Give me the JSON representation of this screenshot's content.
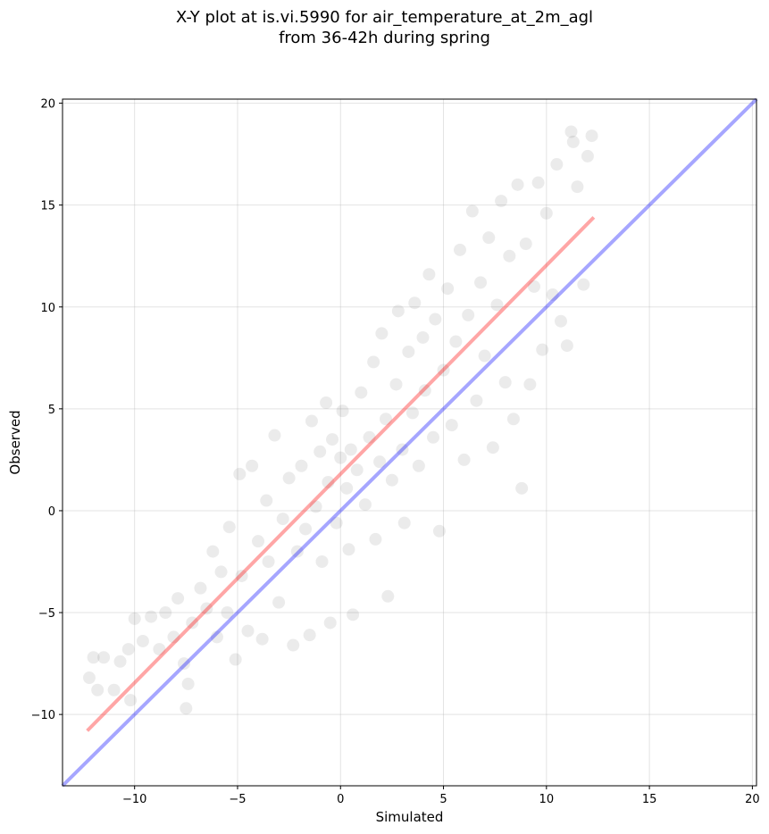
{
  "chart_data": {
    "type": "scatter",
    "title": "X-Y plot at is.vi.5990 for air_temperature_at_2m_agl",
    "subtitle": "from 36-42h during spring",
    "xlabel": "Simulated",
    "ylabel": "Observed",
    "xlim": [
      -13.5,
      20.2
    ],
    "ylim": [
      -13.5,
      20.2
    ],
    "xticks": [
      -10,
      -5,
      0,
      5,
      10,
      15,
      20
    ],
    "yticks": [
      -10,
      -5,
      0,
      5,
      10,
      15,
      20
    ],
    "xtick_labels": [
      "−10",
      "−5",
      "0",
      "5",
      "10",
      "15",
      "20"
    ],
    "ytick_labels": [
      "−10",
      "−5",
      "0",
      "5",
      "10",
      "15",
      "20"
    ],
    "grid": true,
    "point_color": "#000000",
    "point_opacity": 0.08,
    "fit_line": {
      "x": [
        -12.3,
        12.3
      ],
      "y": [
        -10.8,
        14.4
      ],
      "color": "#ff0000",
      "opacity": 0.35
    },
    "identity_line": {
      "x": [
        -13.5,
        20.2
      ],
      "y": [
        -13.5,
        20.2
      ],
      "color": "#0000ff",
      "opacity": 0.35
    },
    "points": [
      {
        "x": -12.2,
        "y": -8.2
      },
      {
        "x": -12.0,
        "y": -7.2
      },
      {
        "x": -11.8,
        "y": -8.8
      },
      {
        "x": -11.5,
        "y": -7.2
      },
      {
        "x": -11.0,
        "y": -8.8
      },
      {
        "x": -10.7,
        "y": -7.4
      },
      {
        "x": -10.3,
        "y": -6.8
      },
      {
        "x": -10.2,
        "y": -9.3
      },
      {
        "x": -10.0,
        "y": -5.3
      },
      {
        "x": -9.6,
        "y": -6.4
      },
      {
        "x": -9.2,
        "y": -5.2
      },
      {
        "x": -8.8,
        "y": -6.8
      },
      {
        "x": -8.5,
        "y": -5.0
      },
      {
        "x": -8.1,
        "y": -6.2
      },
      {
        "x": -7.9,
        "y": -4.3
      },
      {
        "x": -7.6,
        "y": -7.5
      },
      {
        "x": -7.5,
        "y": -9.7
      },
      {
        "x": -7.4,
        "y": -8.5
      },
      {
        "x": -7.2,
        "y": -5.5
      },
      {
        "x": -6.8,
        "y": -3.8
      },
      {
        "x": -6.5,
        "y": -4.8
      },
      {
        "x": -6.2,
        "y": -2.0
      },
      {
        "x": -6.0,
        "y": -6.2
      },
      {
        "x": -5.8,
        "y": -3.0
      },
      {
        "x": -5.5,
        "y": -5.0
      },
      {
        "x": -5.4,
        "y": -0.8
      },
      {
        "x": -5.1,
        "y": -7.3
      },
      {
        "x": -4.9,
        "y": 1.8
      },
      {
        "x": -4.8,
        "y": -3.2
      },
      {
        "x": -4.5,
        "y": -5.9
      },
      {
        "x": -4.3,
        "y": 2.2
      },
      {
        "x": -4.0,
        "y": -1.5
      },
      {
        "x": -3.8,
        "y": -6.3
      },
      {
        "x": -3.6,
        "y": 0.5
      },
      {
        "x": -3.5,
        "y": -2.5
      },
      {
        "x": -3.2,
        "y": 3.7
      },
      {
        "x": -3.0,
        "y": -4.5
      },
      {
        "x": -2.8,
        "y": -0.4
      },
      {
        "x": -2.5,
        "y": 1.6
      },
      {
        "x": -2.3,
        "y": -6.6
      },
      {
        "x": -2.1,
        "y": -2.0
      },
      {
        "x": -1.9,
        "y": 2.2
      },
      {
        "x": -1.7,
        "y": -0.9
      },
      {
        "x": -1.5,
        "y": -6.1
      },
      {
        "x": -1.4,
        "y": 4.4
      },
      {
        "x": -1.2,
        "y": 0.2
      },
      {
        "x": -1.0,
        "y": 2.9
      },
      {
        "x": -0.9,
        "y": -2.5
      },
      {
        "x": -0.7,
        "y": 5.3
      },
      {
        "x": -0.6,
        "y": 1.4
      },
      {
        "x": -0.5,
        "y": -5.5
      },
      {
        "x": -0.4,
        "y": 3.5
      },
      {
        "x": -0.2,
        "y": -0.6
      },
      {
        "x": 0.0,
        "y": 2.6
      },
      {
        "x": 0.1,
        "y": 4.9
      },
      {
        "x": 0.3,
        "y": 1.1
      },
      {
        "x": 0.4,
        "y": -1.9
      },
      {
        "x": 0.5,
        "y": 3.0
      },
      {
        "x": 0.6,
        "y": -5.1
      },
      {
        "x": 0.8,
        "y": 2.0
      },
      {
        "x": 1.0,
        "y": 5.8
      },
      {
        "x": 1.2,
        "y": 0.3
      },
      {
        "x": 1.4,
        "y": 3.6
      },
      {
        "x": 1.6,
        "y": 7.3
      },
      {
        "x": 1.7,
        "y": -1.4
      },
      {
        "x": 1.9,
        "y": 2.4
      },
      {
        "x": 2.0,
        "y": 8.7
      },
      {
        "x": 2.2,
        "y": 4.5
      },
      {
        "x": 2.3,
        "y": -4.2
      },
      {
        "x": 2.5,
        "y": 1.5
      },
      {
        "x": 2.7,
        "y": 6.2
      },
      {
        "x": 2.8,
        "y": 9.8
      },
      {
        "x": 3.0,
        "y": 3.0
      },
      {
        "x": 3.1,
        "y": -0.6
      },
      {
        "x": 3.3,
        "y": 7.8
      },
      {
        "x": 3.5,
        "y": 4.8
      },
      {
        "x": 3.6,
        "y": 10.2
      },
      {
        "x": 3.8,
        "y": 2.2
      },
      {
        "x": 4.0,
        "y": 8.5
      },
      {
        "x": 4.1,
        "y": 5.9
      },
      {
        "x": 4.3,
        "y": 11.6
      },
      {
        "x": 4.5,
        "y": 3.6
      },
      {
        "x": 4.6,
        "y": 9.4
      },
      {
        "x": 4.8,
        "y": -1.0
      },
      {
        "x": 5.0,
        "y": 6.9
      },
      {
        "x": 5.2,
        "y": 10.9
      },
      {
        "x": 5.4,
        "y": 4.2
      },
      {
        "x": 5.6,
        "y": 8.3
      },
      {
        "x": 5.8,
        "y": 12.8
      },
      {
        "x": 6.0,
        "y": 2.5
      },
      {
        "x": 6.2,
        "y": 9.6
      },
      {
        "x": 6.4,
        "y": 14.7
      },
      {
        "x": 6.6,
        "y": 5.4
      },
      {
        "x": 6.8,
        "y": 11.2
      },
      {
        "x": 7.0,
        "y": 7.6
      },
      {
        "x": 7.2,
        "y": 13.4
      },
      {
        "x": 7.4,
        "y": 3.1
      },
      {
        "x": 7.6,
        "y": 10.1
      },
      {
        "x": 7.8,
        "y": 15.2
      },
      {
        "x": 8.0,
        "y": 6.3
      },
      {
        "x": 8.2,
        "y": 12.5
      },
      {
        "x": 8.4,
        "y": 4.5
      },
      {
        "x": 8.6,
        "y": 16.0
      },
      {
        "x": 8.8,
        "y": 1.1
      },
      {
        "x": 9.0,
        "y": 13.1
      },
      {
        "x": 9.2,
        "y": 6.2
      },
      {
        "x": 9.4,
        "y": 11.0
      },
      {
        "x": 9.6,
        "y": 16.1
      },
      {
        "x": 9.8,
        "y": 7.9
      },
      {
        "x": 10.0,
        "y": 14.6
      },
      {
        "x": 10.3,
        "y": 10.6
      },
      {
        "x": 10.5,
        "y": 17.0
      },
      {
        "x": 10.7,
        "y": 9.3
      },
      {
        "x": 11.0,
        "y": 8.1
      },
      {
        "x": 11.3,
        "y": 18.1
      },
      {
        "x": 11.5,
        "y": 15.9
      },
      {
        "x": 11.8,
        "y": 11.1
      },
      {
        "x": 12.0,
        "y": 17.4
      },
      {
        "x": 12.2,
        "y": 18.4
      },
      {
        "x": 11.2,
        "y": 18.6
      }
    ]
  }
}
